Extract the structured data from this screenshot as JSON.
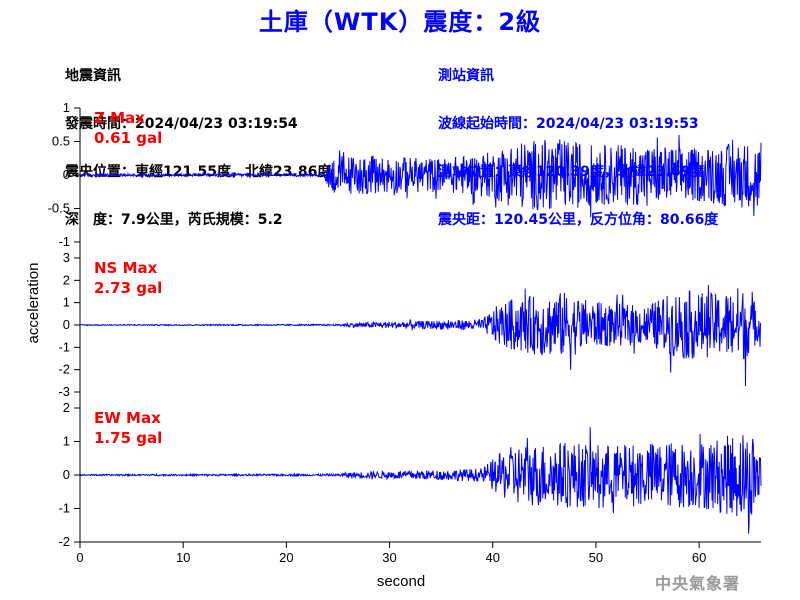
{
  "title": "土庫（WTK）震度：2級",
  "earthquake_info": {
    "heading": "地震資訊",
    "origin_time": "發震時間：2024/04/23 03:19:54",
    "epicenter": "震央位置：東經121.55度，北緯23.86度",
    "depth_magnitude": "深　度：7.9公里，芮氏規模：5.2"
  },
  "station_info": {
    "heading": "測站資訊",
    "wave_start": "波線起始時間：2024/04/23 03:19:53",
    "station_location": "測站位置：東經120.39度，北緯23.69度",
    "distance": "震央距：120.45公里，反方位角：80.66度"
  },
  "footer": "中央氣象署",
  "colors": {
    "trace": "#0000ff",
    "max_label": "#ff0000",
    "title": "#0000ff",
    "footer": "#999999"
  },
  "chart_data": {
    "type": "line",
    "xlabel": "second",
    "ylabel": "acceleration",
    "xlim": [
      0,
      66
    ],
    "xticks": [
      0,
      10,
      20,
      30,
      40,
      50,
      60
    ],
    "panels": [
      {
        "name": "Z",
        "max_label": "Z Max",
        "max_value": "0.61 gal",
        "ylim": [
          -1,
          1
        ],
        "yticks": [
          -1,
          -0.5,
          0,
          0.5,
          1
        ],
        "ytick_labels": [
          "-1",
          "-0.5",
          "0",
          "0.5",
          "1"
        ],
        "envelope": [
          [
            0,
            0.02
          ],
          [
            23.5,
            0.02
          ],
          [
            24.5,
            0.3
          ],
          [
            30,
            0.28
          ],
          [
            35,
            0.25
          ],
          [
            40,
            0.35
          ],
          [
            42,
            0.5
          ],
          [
            46,
            0.55
          ],
          [
            50,
            0.45
          ],
          [
            55,
            0.45
          ],
          [
            60,
            0.4
          ],
          [
            64,
            0.5
          ],
          [
            66,
            0.45
          ]
        ],
        "peak": {
          "t": 65.3,
          "value": -0.61
        }
      },
      {
        "name": "NS",
        "max_label": "NS Max",
        "max_value": "2.73 gal",
        "ylim": [
          -3,
          3
        ],
        "yticks": [
          -3,
          -2,
          -1,
          0,
          1,
          2,
          3
        ],
        "ytick_labels": [
          "-3",
          "-2",
          "-1",
          "0",
          "1",
          "2",
          "3"
        ],
        "envelope": [
          [
            0,
            0.02
          ],
          [
            25,
            0.03
          ],
          [
            26,
            0.1
          ],
          [
            30,
            0.15
          ],
          [
            35,
            0.2
          ],
          [
            39,
            0.25
          ],
          [
            40.5,
            0.9
          ],
          [
            42,
            1.2
          ],
          [
            47,
            1.5
          ],
          [
            50,
            1.0
          ],
          [
            55,
            0.9
          ],
          [
            58,
            1.6
          ],
          [
            62,
            1.4
          ],
          [
            64,
            1.8
          ],
          [
            66,
            0.6
          ]
        ],
        "peak": {
          "t": 64.5,
          "value": -2.73
        }
      },
      {
        "name": "EW",
        "max_label": "EW Max",
        "max_value": "1.75 gal",
        "ylim": [
          -2,
          2
        ],
        "yticks": [
          -2,
          -1,
          0,
          1,
          2
        ],
        "ytick_labels": [
          "-2",
          "-1",
          "0",
          "1",
          "2"
        ],
        "envelope": [
          [
            0,
            0.02
          ],
          [
            25,
            0.03
          ],
          [
            26,
            0.08
          ],
          [
            30,
            0.12
          ],
          [
            35,
            0.15
          ],
          [
            39,
            0.2
          ],
          [
            40.5,
            0.6
          ],
          [
            42,
            0.9
          ],
          [
            47,
            1.0
          ],
          [
            52,
            0.9
          ],
          [
            56,
            1.0
          ],
          [
            60,
            1.0
          ],
          [
            63,
            1.2
          ],
          [
            65,
            1.5
          ],
          [
            66,
            0.7
          ]
        ],
        "peak": {
          "t": 64.8,
          "value": -1.75
        }
      }
    ]
  }
}
